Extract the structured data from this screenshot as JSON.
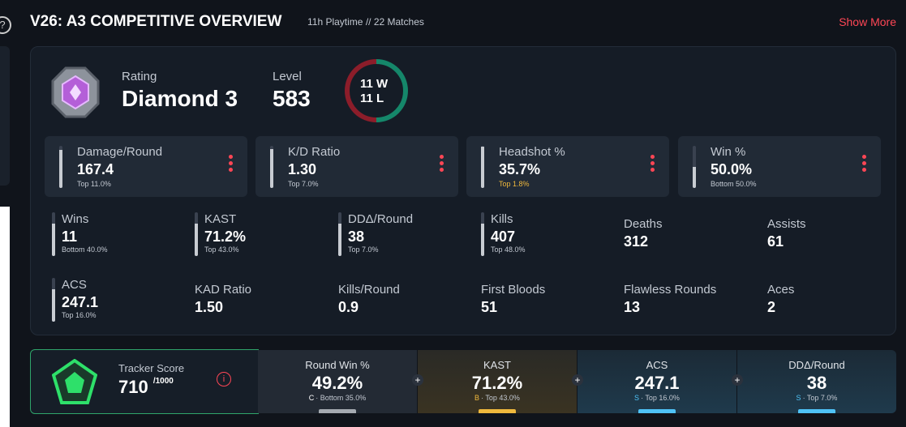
{
  "header": {
    "title": "V26: A3 COMPETITIVE OVERVIEW",
    "playtime": "11h Playtime",
    "matches": "// 22 Matches",
    "show_more": "Show More"
  },
  "rank": {
    "rating_label": "Rating",
    "rating": "Diamond 3",
    "level_label": "Level",
    "level": "583",
    "wins": "11",
    "wins_unit": "W",
    "losses": "11",
    "losses_unit": "L"
  },
  "cards": [
    {
      "label": "Damage/Round",
      "value": "167.4",
      "sub": "Top 11.0%"
    },
    {
      "label": "K/D Ratio",
      "value": "1.30",
      "sub": "Top 7.0%"
    },
    {
      "label": "Headshot %",
      "value": "35.7%",
      "sub": "Top 1.8%"
    },
    {
      "label": "Win %",
      "value": "50.0%",
      "sub": "Bottom 50.0%"
    }
  ],
  "stats": [
    {
      "label": "Wins",
      "value": "11",
      "sub": "Bottom 40.0%"
    },
    {
      "label": "KAST",
      "value": "71.2%",
      "sub": "Top 43.0%"
    },
    {
      "label": "DDΔ/Round",
      "value": "38",
      "sub": "Top 7.0%"
    },
    {
      "label": "Kills",
      "value": "407",
      "sub": "Top 48.0%"
    },
    {
      "label": "Deaths",
      "value": "312"
    },
    {
      "label": "Assists",
      "value": "61"
    },
    {
      "label": "ACS",
      "value": "247.1",
      "sub": "Top 16.0%"
    },
    {
      "label": "KAD Ratio",
      "value": "1.50"
    },
    {
      "label": "Kills/Round",
      "value": "0.9"
    },
    {
      "label": "First Bloods",
      "value": "51"
    },
    {
      "label": "Flawless Rounds",
      "value": "13"
    },
    {
      "label": "Aces",
      "value": "2"
    }
  ],
  "tracker": {
    "label": "Tracker Score",
    "score": "710",
    "max": "/1000",
    "cells": [
      {
        "label": "Round Win %",
        "value": "49.2%",
        "grade": "C",
        "sub": "· Bottom 35.0%"
      },
      {
        "label": "KAST",
        "value": "71.2%",
        "grade": "B",
        "sub": "· Top 43.0%"
      },
      {
        "label": "ACS",
        "value": "247.1",
        "grade": "S",
        "sub": "· Top 16.0%"
      },
      {
        "label": "DDΔ/Round",
        "value": "38",
        "grade": "S",
        "sub": "· Top 7.0%"
      }
    ]
  }
}
